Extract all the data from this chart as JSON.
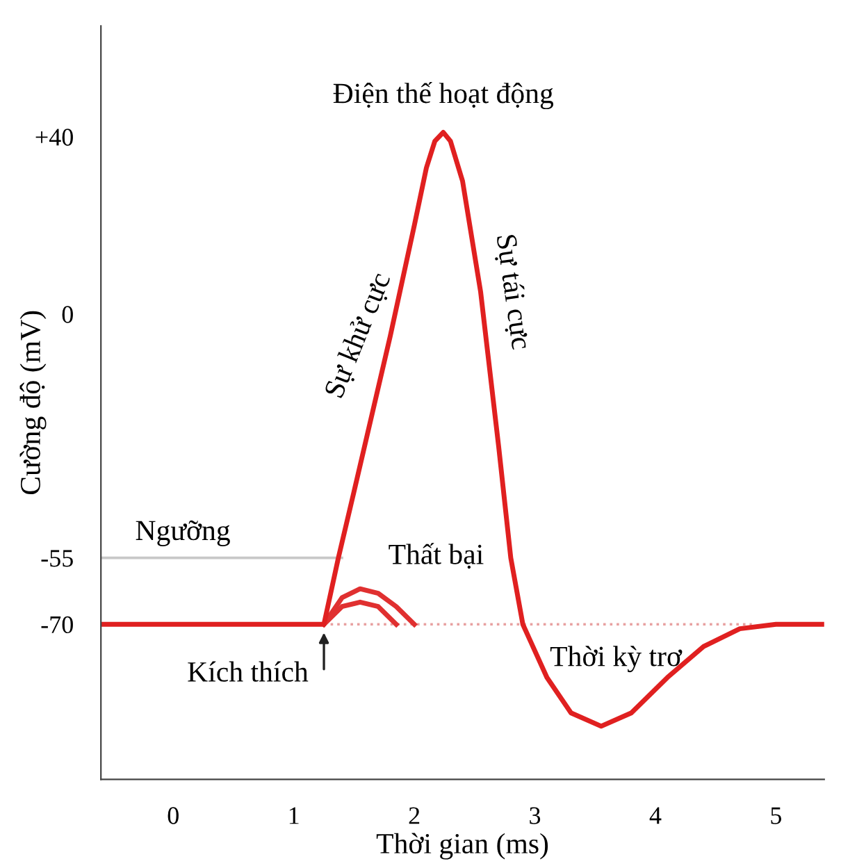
{
  "chart_data": {
    "type": "line",
    "xlabel": "Thời gian (ms)",
    "ylabel": "Cường độ (mV)",
    "xlim": [
      -0.6,
      5.4
    ],
    "ylim": [
      -105,
      65
    ],
    "xticks": [
      0,
      1,
      2,
      3,
      4,
      5
    ],
    "yticks": [
      {
        "value": 40,
        "label": "+40"
      },
      0,
      {
        "value": -55,
        "label": "-55"
      },
      {
        "value": -70,
        "label": "-70"
      }
    ],
    "grid": false,
    "legend": false,
    "marker": "none",
    "series": [
      {
        "color": "#c8c8c8",
        "x": [
          -0.6,
          1.4
        ],
        "values": [
          -55,
          -55
        ]
      },
      {
        "color": "#e8a0a0",
        "line_style": "dotted",
        "x": [
          1.25,
          4.8
        ],
        "values": [
          -70,
          -70
        ]
      },
      {
        "color": "#e03030",
        "x": [
          1.25,
          1.4,
          1.55,
          1.7,
          1.85,
          2.0
        ],
        "values": [
          -70,
          -64,
          -62,
          -63,
          -66,
          -70
        ]
      },
      {
        "color": "#e03030",
        "x": [
          1.25,
          1.4,
          1.55,
          1.7,
          1.85
        ],
        "values": [
          -70,
          -66,
          -65,
          -66,
          -70
        ]
      },
      {
        "color": "#e02020",
        "x": [
          -0.6,
          1.25,
          1.37,
          1.5,
          1.8,
          2.0,
          2.1,
          2.17,
          2.24,
          2.3,
          2.4,
          2.55,
          2.7,
          2.8,
          2.9,
          3.1,
          3.3,
          3.55,
          3.8,
          4.1,
          4.4,
          4.7,
          5.0,
          5.4
        ],
        "values": [
          -70,
          -70,
          -55,
          -40,
          -5,
          20,
          33,
          39,
          41,
          39,
          30,
          5,
          -30,
          -55,
          -70,
          -82,
          -90,
          -93,
          -90,
          -82,
          -75,
          -71,
          -70,
          -70
        ]
      }
    ],
    "annotations": [
      {
        "text": "Điện thế hoạt động",
        "x": 2.24,
        "y": 41
      },
      {
        "text": "Sự khử cực",
        "x": 1.8,
        "y": -5
      },
      {
        "text": "Sự tái cực",
        "x": 2.55,
        "y": 5
      },
      {
        "text": "Ngưỡng",
        "x": 0.4,
        "y": -55
      },
      {
        "text": "Thất bại",
        "x": 1.7,
        "y": -63
      },
      {
        "text": "Kích thích",
        "x": 1.25,
        "y": -70
      },
      {
        "text": "Thời kỳ trơ",
        "x": 2.9,
        "y": -70
      }
    ]
  }
}
